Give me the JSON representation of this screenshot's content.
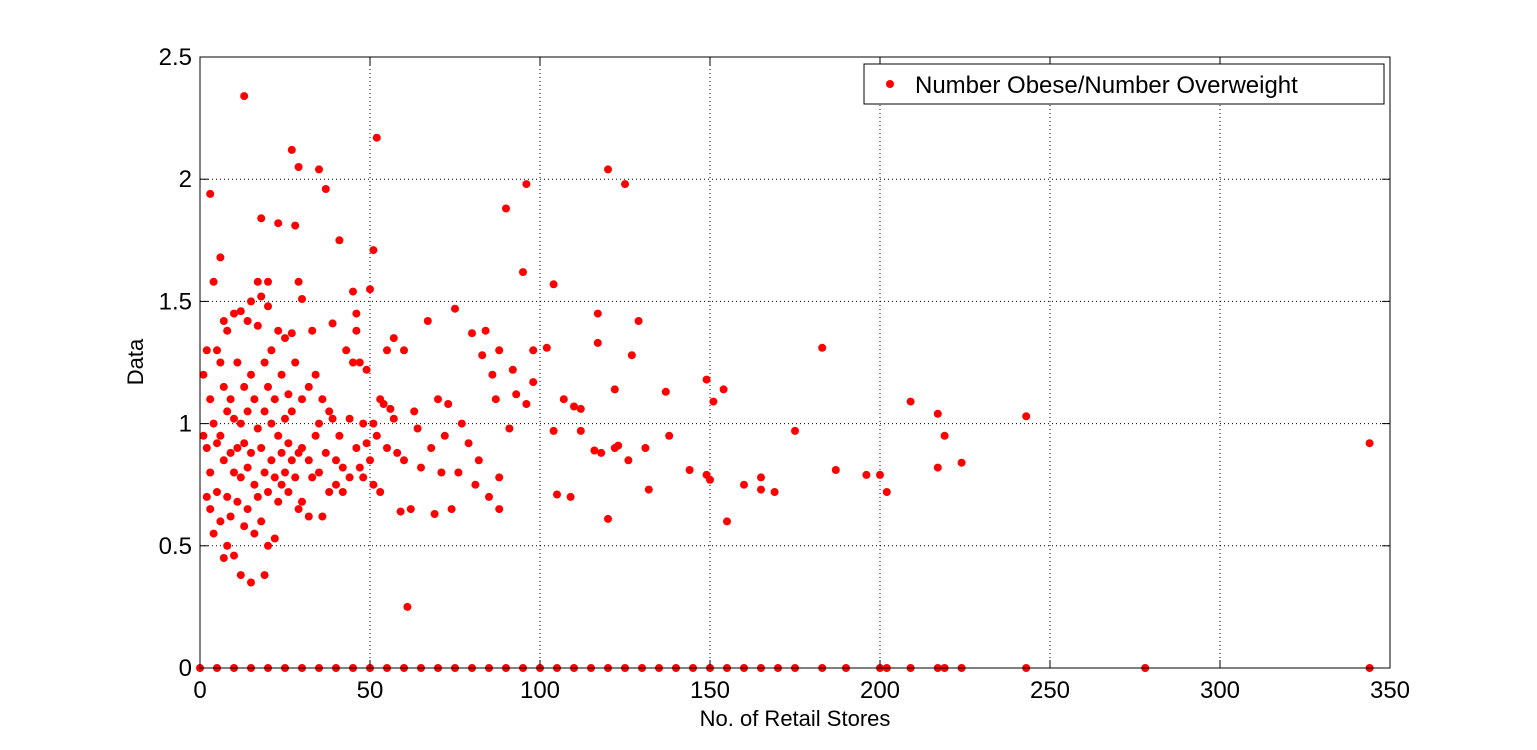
{
  "chart_data": {
    "type": "scatter",
    "xlabel": "No. of Retail Stores",
    "ylabel": "Data",
    "xlim": [
      0,
      350
    ],
    "ylim": [
      0,
      2.5
    ],
    "x_ticks": [
      0,
      50,
      100,
      150,
      200,
      250,
      300,
      350
    ],
    "y_ticks": [
      0,
      0.5,
      1,
      1.5,
      2,
      2.5
    ],
    "x_tick_labels": [
      "0",
      "50",
      "100",
      "150",
      "200",
      "250",
      "300",
      "350"
    ],
    "y_tick_labels": [
      "0",
      "0.5",
      "1",
      "1.5",
      "2",
      "2.5"
    ],
    "grid": true,
    "legend_position": "top-right",
    "marker_color": "#ff0000",
    "series": [
      {
        "name": "Number Obese/Number Overweight",
        "points": [
          [
            1,
            1.2
          ],
          [
            1,
            0.95
          ],
          [
            2,
            1.3
          ],
          [
            2,
            0.9
          ],
          [
            2,
            0.7
          ],
          [
            3,
            1.94
          ],
          [
            3,
            1.1
          ],
          [
            3,
            0.8
          ],
          [
            3,
            0.65
          ],
          [
            4,
            1.58
          ],
          [
            4,
            1.0
          ],
          [
            4,
            0.55
          ],
          [
            5,
            1.3
          ],
          [
            5,
            0.92
          ],
          [
            5,
            0.72
          ],
          [
            6,
            1.68
          ],
          [
            6,
            1.25
          ],
          [
            6,
            0.6
          ],
          [
            6,
            0.95
          ],
          [
            7,
            1.42
          ],
          [
            7,
            1.15
          ],
          [
            7,
            0.45
          ],
          [
            7,
            0.85
          ],
          [
            8,
            1.38
          ],
          [
            8,
            1.05
          ],
          [
            8,
            0.7
          ],
          [
            8,
            0.5
          ],
          [
            9,
            1.1
          ],
          [
            9,
            0.88
          ],
          [
            9,
            0.62
          ],
          [
            10,
            1.45
          ],
          [
            10,
            1.02
          ],
          [
            10,
            0.8
          ],
          [
            10,
            0.46
          ],
          [
            11,
            1.25
          ],
          [
            11,
            0.9
          ],
          [
            11,
            0.68
          ],
          [
            12,
            1.46
          ],
          [
            12,
            1.0
          ],
          [
            12,
            0.78
          ],
          [
            12,
            0.38
          ],
          [
            13,
            2.34
          ],
          [
            13,
            1.15
          ],
          [
            13,
            0.92
          ],
          [
            13,
            0.58
          ],
          [
            14,
            1.42
          ],
          [
            14,
            1.05
          ],
          [
            14,
            0.82
          ],
          [
            14,
            0.65
          ],
          [
            15,
            1.5
          ],
          [
            15,
            1.2
          ],
          [
            15,
            0.88
          ],
          [
            15,
            0.35
          ],
          [
            16,
            1.1
          ],
          [
            16,
            0.75
          ],
          [
            16,
            0.55
          ],
          [
            17,
            1.58
          ],
          [
            17,
            1.4
          ],
          [
            17,
            0.98
          ],
          [
            17,
            0.7
          ],
          [
            18,
            1.84
          ],
          [
            18,
            1.52
          ],
          [
            18,
            0.9
          ],
          [
            18,
            0.6
          ],
          [
            19,
            1.25
          ],
          [
            19,
            1.05
          ],
          [
            19,
            0.8
          ],
          [
            19,
            0.38
          ],
          [
            20,
            1.58
          ],
          [
            20,
            1.48
          ],
          [
            20,
            1.15
          ],
          [
            20,
            0.72
          ],
          [
            20,
            0.5
          ],
          [
            21,
            1.3
          ],
          [
            21,
            1.0
          ],
          [
            21,
            0.85
          ],
          [
            22,
            1.1
          ],
          [
            22,
            0.78
          ],
          [
            22,
            0.53
          ],
          [
            23,
            1.82
          ],
          [
            23,
            1.38
          ],
          [
            23,
            0.95
          ],
          [
            23,
            0.68
          ],
          [
            24,
            1.2
          ],
          [
            24,
            0.88
          ],
          [
            24,
            0.75
          ],
          [
            25,
            1.35
          ],
          [
            25,
            1.02
          ],
          [
            25,
            0.8
          ],
          [
            26,
            1.12
          ],
          [
            26,
            0.92
          ],
          [
            26,
            0.72
          ],
          [
            27,
            2.12
          ],
          [
            27,
            1.37
          ],
          [
            27,
            1.05
          ],
          [
            27,
            0.85
          ],
          [
            28,
            1.81
          ],
          [
            28,
            1.25
          ],
          [
            28,
            0.78
          ],
          [
            29,
            2.05
          ],
          [
            29,
            1.58
          ],
          [
            29,
            0.88
          ],
          [
            29,
            0.65
          ],
          [
            30,
            1.51
          ],
          [
            30,
            1.1
          ],
          [
            30,
            0.9
          ],
          [
            30,
            0.68
          ],
          [
            32,
            1.15
          ],
          [
            32,
            0.85
          ],
          [
            32,
            0.62
          ],
          [
            33,
            1.38
          ],
          [
            33,
            0.78
          ],
          [
            34,
            1.2
          ],
          [
            34,
            0.95
          ],
          [
            35,
            2.04
          ],
          [
            35,
            1.0
          ],
          [
            35,
            0.8
          ],
          [
            36,
            1.1
          ],
          [
            36,
            0.62
          ],
          [
            37,
            1.96
          ],
          [
            37,
            0.88
          ],
          [
            38,
            1.05
          ],
          [
            38,
            0.72
          ],
          [
            39,
            1.41
          ],
          [
            39,
            1.02
          ],
          [
            40,
            0.85
          ],
          [
            40,
            0.75
          ],
          [
            41,
            1.75
          ],
          [
            41,
            0.95
          ],
          [
            42,
            0.82
          ],
          [
            42,
            0.72
          ],
          [
            43,
            1.3
          ],
          [
            44,
            1.02
          ],
          [
            44,
            0.78
          ],
          [
            45,
            1.54
          ],
          [
            45,
            1.25
          ],
          [
            46,
            1.45
          ],
          [
            46,
            1.38
          ],
          [
            46,
            0.9
          ],
          [
            47,
            1.25
          ],
          [
            47,
            0.82
          ],
          [
            48,
            1.0
          ],
          [
            48,
            0.78
          ],
          [
            49,
            1.22
          ],
          [
            49,
            0.92
          ],
          [
            50,
            1.55
          ],
          [
            50,
            0.85
          ],
          [
            51,
            1.71
          ],
          [
            51,
            1.0
          ],
          [
            51,
            0.75
          ],
          [
            52,
            2.17
          ],
          [
            52,
            0.95
          ],
          [
            53,
            1.1
          ],
          [
            53,
            0.72
          ],
          [
            54,
            1.08
          ],
          [
            55,
            1.3
          ],
          [
            55,
            0.9
          ],
          [
            56,
            1.06
          ],
          [
            57,
            1.35
          ],
          [
            57,
            1.02
          ],
          [
            58,
            0.88
          ],
          [
            59,
            0.64
          ],
          [
            60,
            1.3
          ],
          [
            60,
            0.85
          ],
          [
            61,
            0.25
          ],
          [
            62,
            0.65
          ],
          [
            63,
            1.05
          ],
          [
            64,
            0.98
          ],
          [
            65,
            0.82
          ],
          [
            67,
            1.42
          ],
          [
            68,
            0.9
          ],
          [
            69,
            0.63
          ],
          [
            70,
            1.1
          ],
          [
            71,
            0.8
          ],
          [
            72,
            0.95
          ],
          [
            73,
            1.08
          ],
          [
            74,
            0.65
          ],
          [
            75,
            1.47
          ],
          [
            76,
            0.8
          ],
          [
            77,
            1.0
          ],
          [
            79,
            0.92
          ],
          [
            80,
            1.37
          ],
          [
            81,
            0.75
          ],
          [
            82,
            0.85
          ],
          [
            83,
            1.28
          ],
          [
            84,
            1.38
          ],
          [
            85,
            0.7
          ],
          [
            86,
            1.2
          ],
          [
            87,
            1.1
          ],
          [
            88,
            1.3
          ],
          [
            88,
            0.78
          ],
          [
            88,
            0.65
          ],
          [
            90,
            1.88
          ],
          [
            91,
            0.98
          ],
          [
            92,
            1.22
          ],
          [
            93,
            1.12
          ],
          [
            95,
            1.62
          ],
          [
            96,
            1.98
          ],
          [
            96,
            1.08
          ],
          [
            98,
            1.3
          ],
          [
            98,
            1.17
          ],
          [
            102,
            1.31
          ],
          [
            104,
            1.57
          ],
          [
            104,
            0.97
          ],
          [
            105,
            0.71
          ],
          [
            107,
            1.1
          ],
          [
            109,
            0.7
          ],
          [
            110,
            1.07
          ],
          [
            112,
            0.97
          ],
          [
            112,
            1.06
          ],
          [
            116,
            0.89
          ],
          [
            117,
            1.45
          ],
          [
            117,
            1.33
          ],
          [
            118,
            0.88
          ],
          [
            120,
            2.04
          ],
          [
            120,
            0.61
          ],
          [
            122,
            1.14
          ],
          [
            122,
            0.9
          ],
          [
            123,
            0.91
          ],
          [
            125,
            1.98
          ],
          [
            126,
            0.85
          ],
          [
            127,
            1.28
          ],
          [
            129,
            1.42
          ],
          [
            131,
            0.9
          ],
          [
            132,
            0.73
          ],
          [
            137,
            1.13
          ],
          [
            138,
            0.95
          ],
          [
            144,
            0.81
          ],
          [
            149,
            1.18
          ],
          [
            149,
            0.79
          ],
          [
            150,
            0.77
          ],
          [
            151,
            1.09
          ],
          [
            154,
            1.14
          ],
          [
            155,
            0.6
          ],
          [
            160,
            0.75
          ],
          [
            165,
            0.78
          ],
          [
            165,
            0.73
          ],
          [
            169,
            0.72
          ],
          [
            175,
            0.97
          ],
          [
            183,
            1.31
          ],
          [
            187,
            0.81
          ],
          [
            196,
            0.79
          ],
          [
            200,
            0.79
          ],
          [
            202,
            0.72
          ],
          [
            209,
            1.09
          ],
          [
            217,
            0.82
          ],
          [
            217,
            1.04
          ],
          [
            219,
            0.95
          ],
          [
            224,
            0.84
          ],
          [
            243,
            1.03
          ],
          [
            344,
            0.92
          ],
          [
            0,
            0
          ],
          [
            5,
            0
          ],
          [
            10,
            0
          ],
          [
            15,
            0
          ],
          [
            20,
            0
          ],
          [
            25,
            0
          ],
          [
            30,
            0
          ],
          [
            35,
            0
          ],
          [
            40,
            0
          ],
          [
            45,
            0
          ],
          [
            50,
            0
          ],
          [
            55,
            0
          ],
          [
            60,
            0
          ],
          [
            65,
            0
          ],
          [
            70,
            0
          ],
          [
            75,
            0
          ],
          [
            80,
            0
          ],
          [
            85,
            0
          ],
          [
            90,
            0
          ],
          [
            95,
            0
          ],
          [
            100,
            0
          ],
          [
            105,
            0
          ],
          [
            110,
            0
          ],
          [
            115,
            0
          ],
          [
            120,
            0
          ],
          [
            125,
            0
          ],
          [
            130,
            0
          ],
          [
            135,
            0
          ],
          [
            140,
            0
          ],
          [
            145,
            0
          ],
          [
            150,
            0
          ],
          [
            155,
            0
          ],
          [
            160,
            0
          ],
          [
            165,
            0
          ],
          [
            170,
            0
          ],
          [
            175,
            0
          ],
          [
            183,
            0
          ],
          [
            190,
            0
          ],
          [
            200,
            0
          ],
          [
            202,
            0
          ],
          [
            209,
            0
          ],
          [
            217,
            0
          ],
          [
            219,
            0
          ],
          [
            224,
            0
          ],
          [
            243,
            0
          ],
          [
            278,
            0
          ],
          [
            344,
            0
          ]
        ]
      }
    ]
  }
}
